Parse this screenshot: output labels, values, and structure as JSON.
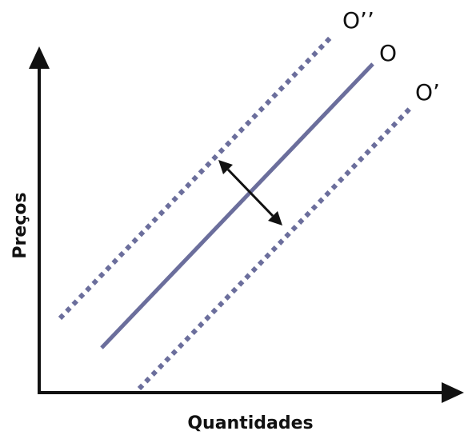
{
  "diagram": {
    "y_axis_label": "Preços",
    "x_axis_label": "Quantidades",
    "curves": [
      {
        "label": "O",
        "style": "solid"
      },
      {
        "label": "O’",
        "style": "dotted"
      },
      {
        "label": "O’’",
        "style": "dotted"
      }
    ],
    "shift_arrow": "double-headed arrow perpendicular to O indicating shift toward O’’ and O’"
  },
  "colors": {
    "curve": "#6b6e9c",
    "axis": "#111111",
    "arrow": "#111111",
    "background": "#ffffff"
  }
}
